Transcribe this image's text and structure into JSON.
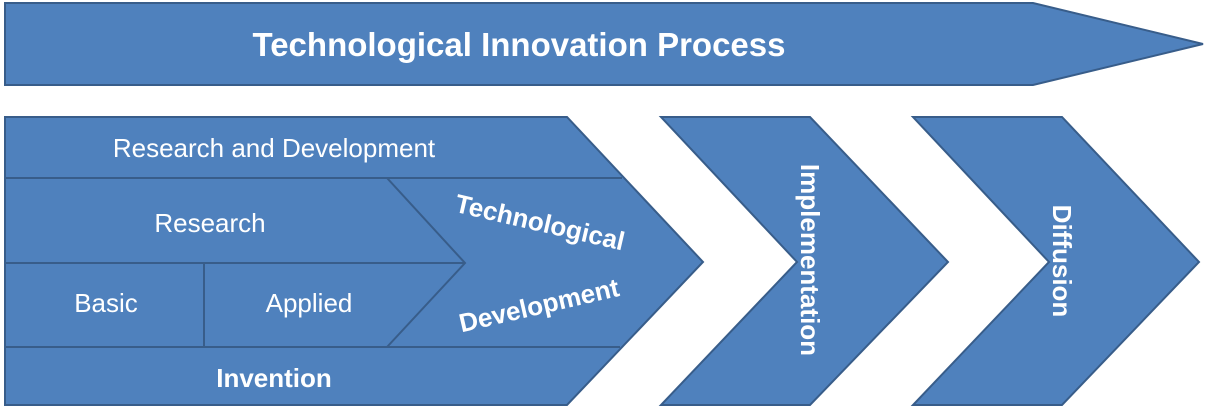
{
  "diagram": {
    "title": "Technological Innovation Process",
    "research_and_development": "Research and Development",
    "research": "Research",
    "basic": "Basic",
    "applied": "Applied",
    "technological_development_line1": "Technological",
    "technological_development_line2": "Development",
    "invention": "Invention",
    "implementation": "Implementation",
    "diffusion": "Diffusion"
  },
  "colors": {
    "fill": "#4f81bd",
    "stroke": "#385d8a",
    "text": "#ffffff"
  }
}
